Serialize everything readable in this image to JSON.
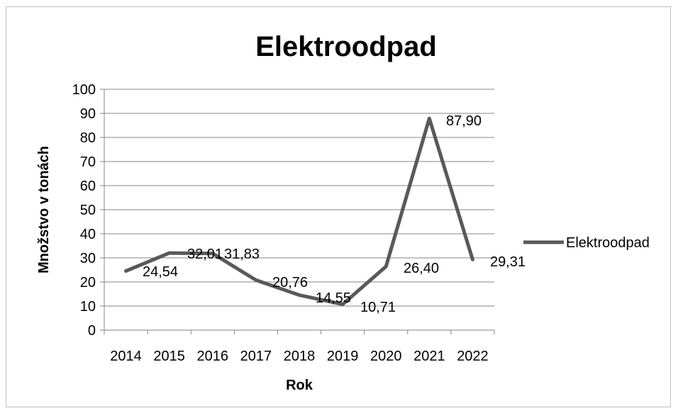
{
  "chart_data": {
    "type": "line",
    "title": "Elektroodpad",
    "xlabel": "Rok",
    "ylabel": "Množstvo v tonách",
    "categories": [
      "2014",
      "2015",
      "2016",
      "2017",
      "2018",
      "2019",
      "2020",
      "2021",
      "2022"
    ],
    "series": [
      {
        "name": "Elektroodpad",
        "values": [
          24.54,
          32.01,
          31.83,
          20.76,
          14.55,
          10.71,
          26.4,
          87.9,
          29.31
        ],
        "labels": [
          "24,54",
          "32,01",
          "31,83",
          "20,76",
          "14,55",
          "10,71",
          "26,40",
          "87,90",
          "29,31"
        ]
      }
    ],
    "ylim": [
      0,
      100
    ],
    "yticks": [
      "0",
      "10",
      "20",
      "30",
      "40",
      "50",
      "60",
      "70",
      "80",
      "90",
      "100"
    ],
    "grid": true,
    "legend_position": "right",
    "line_color": "#595959"
  }
}
